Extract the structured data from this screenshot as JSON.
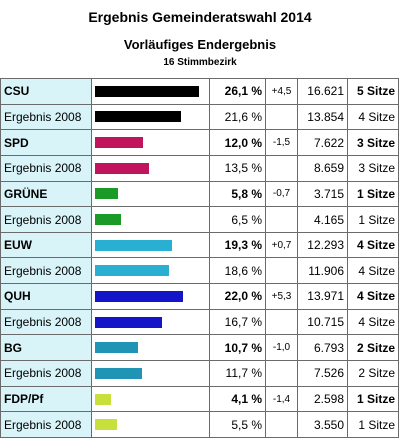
{
  "header": {
    "title": "Ergebnis Gemeinderatswahl 2014",
    "subtitle": "Vorläufiges Endergebnis",
    "districts": "16 Stimmbezirk"
  },
  "colors": {
    "row_label_bg": "#d8f4f8",
    "border": "#6b6b6b"
  },
  "rows": [
    {
      "party": "CSU",
      "type": "current",
      "bar_pct": 26.1,
      "color": "#000000",
      "percent": "26,1 %",
      "diff": "+4,5",
      "votes": "16.621",
      "seats": "5 Sitze"
    },
    {
      "party": "Ergebnis 2008",
      "type": "prev",
      "bar_pct": 21.6,
      "color": "#000000",
      "percent": "21,6 %",
      "diff": "",
      "votes": "13.854",
      "seats": "4 Sitze"
    },
    {
      "party": "SPD",
      "type": "current",
      "bar_pct": 12.0,
      "color": "#c0145c",
      "percent": "12,0 %",
      "diff": "-1,5",
      "votes": "7.622",
      "seats": "3 Sitze"
    },
    {
      "party": "Ergebnis 2008",
      "type": "prev",
      "bar_pct": 13.5,
      "color": "#c0145c",
      "percent": "13,5 %",
      "diff": "",
      "votes": "8.659",
      "seats": "3 Sitze"
    },
    {
      "party": "GRÜNE",
      "type": "current",
      "bar_pct": 5.8,
      "color": "#1c9a28",
      "percent": "5,8 %",
      "diff": "-0,7",
      "votes": "3.715",
      "seats": "1 Sitze"
    },
    {
      "party": "Ergebnis 2008",
      "type": "prev",
      "bar_pct": 6.5,
      "color": "#1c9a28",
      "percent": "6,5 %",
      "diff": "",
      "votes": "4.165",
      "seats": "1 Sitze"
    },
    {
      "party": "EUW",
      "type": "current",
      "bar_pct": 19.3,
      "color": "#29afd2",
      "percent": "19,3 %",
      "diff": "+0,7",
      "votes": "12.293",
      "seats": "4 Sitze"
    },
    {
      "party": "Ergebnis 2008",
      "type": "prev",
      "bar_pct": 18.6,
      "color": "#29afd2",
      "percent": "18,6 %",
      "diff": "",
      "votes": "11.906",
      "seats": "4 Sitze"
    },
    {
      "party": "QUH",
      "type": "current",
      "bar_pct": 22.0,
      "color": "#1414c8",
      "percent": "22,0 %",
      "diff": "+5,3",
      "votes": "13.971",
      "seats": "4 Sitze"
    },
    {
      "party": "Ergebnis 2008",
      "type": "prev",
      "bar_pct": 16.7,
      "color": "#1414c8",
      "percent": "16,7 %",
      "diff": "",
      "votes": "10.715",
      "seats": "4 Sitze"
    },
    {
      "party": "BG",
      "type": "current",
      "bar_pct": 10.7,
      "color": "#1f94b4",
      "percent": "10,7 %",
      "diff": "-1,0",
      "votes": "6.793",
      "seats": "2 Sitze"
    },
    {
      "party": "Ergebnis 2008",
      "type": "prev",
      "bar_pct": 11.7,
      "color": "#1f94b4",
      "percent": "11,7 %",
      "diff": "",
      "votes": "7.526",
      "seats": "2 Sitze"
    },
    {
      "party": "FDP/Pf",
      "type": "current",
      "bar_pct": 4.1,
      "color": "#c8e03c",
      "percent": "4,1 %",
      "diff": "-1,4",
      "votes": "2.598",
      "seats": "1 Sitze"
    },
    {
      "party": "Ergebnis 2008",
      "type": "prev",
      "bar_pct": 5.5,
      "color": "#c8e03c",
      "percent": "5,5 %",
      "diff": "",
      "votes": "3.550",
      "seats": "1 Sitze"
    }
  ]
}
